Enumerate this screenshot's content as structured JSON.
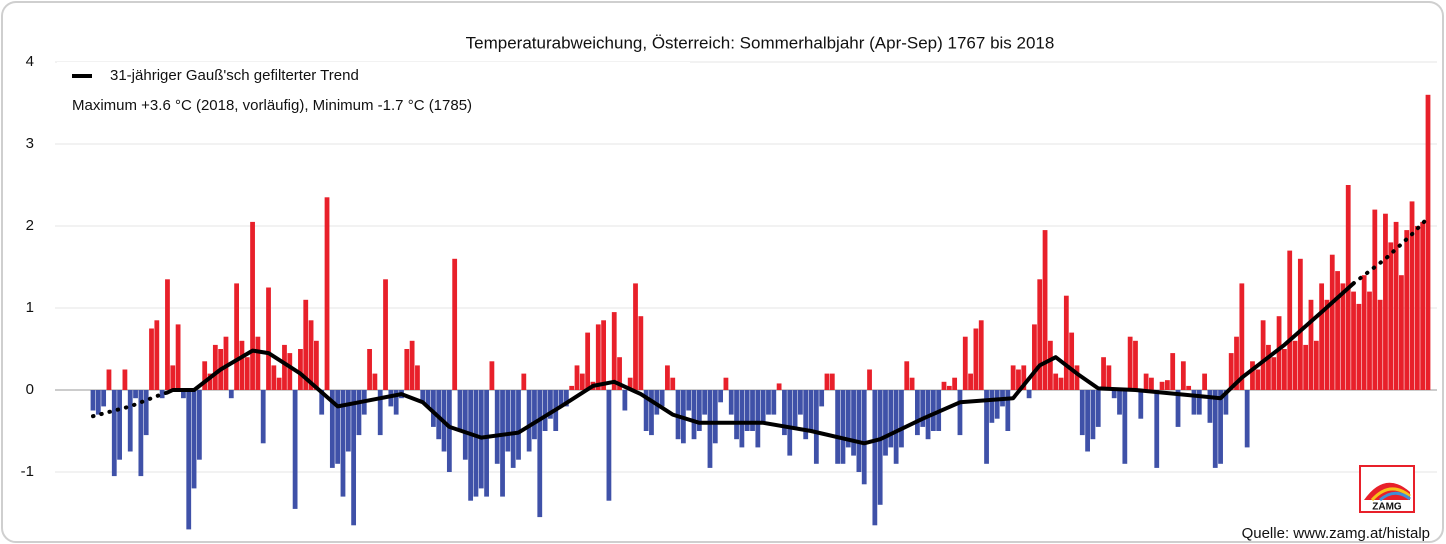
{
  "chart_data": {
    "type": "bar",
    "title": "Temperaturabweichung, Österreich: Sommerhalbjahr (Apr-Sep) 1767 bis 2018",
    "annotation": "Maximum +3.6 °C (2018, vorläufig), Minimum -1.7 °C (1785)",
    "source": "Quelle: www.zamg.at/histalp",
    "logo": "ZAMG",
    "xlim": [
      1767,
      2018
    ],
    "ylim": [
      -1.8,
      4
    ],
    "yticks": [
      -1,
      0,
      1,
      2,
      3,
      4
    ],
    "grid": true,
    "positive_color": "#e8202a",
    "negative_color": "#3f51a8",
    "values": [
      -0.25,
      -0.3,
      -0.2,
      0.25,
      -1.05,
      -0.85,
      0.25,
      -0.75,
      -0.1,
      -1.05,
      -0.55,
      0.75,
      0.85,
      -0.1,
      1.35,
      0.3,
      0.8,
      -0.1,
      -1.7,
      -1.2,
      -0.85,
      0.35,
      0.2,
      0.55,
      0.5,
      0.65,
      -0.1,
      1.3,
      0.6,
      0.4,
      2.05,
      0.65,
      -0.65,
      1.25,
      0.3,
      0.15,
      0.55,
      0.45,
      -1.45,
      0.5,
      1.1,
      0.85,
      0.6,
      -0.3,
      2.35,
      -0.95,
      -0.9,
      -1.3,
      -0.75,
      -1.65,
      -0.55,
      -0.3,
      0.5,
      0.2,
      -0.55,
      1.35,
      -0.2,
      -0.3,
      -0.1,
      0.5,
      0.6,
      0.3,
      -0.15,
      -0.2,
      -0.45,
      -0.6,
      -0.75,
      -1.0,
      1.6,
      -0.5,
      -0.85,
      -1.35,
      -1.3,
      -1.2,
      -1.3,
      0.35,
      -0.9,
      -1.3,
      -0.75,
      -0.95,
      -0.85,
      0.2,
      -0.75,
      -0.6,
      -1.55,
      -0.5,
      -0.35,
      -0.5,
      -0.2,
      -0.2,
      0.05,
      0.3,
      0.2,
      0.7,
      0.1,
      0.8,
      0.85,
      -1.35,
      0.95,
      0.4,
      -0.25,
      0.15,
      1.3,
      0.9,
      -0.5,
      -0.55,
      -0.3,
      -0.2,
      0.3,
      0.15,
      -0.6,
      -0.65,
      -0.25,
      -0.6,
      -0.5,
      -0.3,
      -0.95,
      -0.65,
      -0.15,
      0.15,
      -0.3,
      -0.6,
      -0.7,
      -0.5,
      -0.5,
      -0.7,
      -0.4,
      -0.3,
      -0.3,
      0.08,
      -0.55,
      -0.8,
      -0.45,
      -0.3,
      -0.6,
      -0.5,
      -0.9,
      -0.2,
      0.2,
      0.2,
      -0.9,
      -0.9,
      -0.7,
      -0.8,
      -1.0,
      -1.15,
      0.25,
      -1.65,
      -1.4,
      -0.8,
      -0.7,
      -0.9,
      -0.7,
      0.35,
      0.15,
      -0.55,
      -0.45,
      -0.6,
      -0.5,
      -0.5,
      0.1,
      0.05,
      0.15,
      -0.55,
      0.65,
      0.2,
      0.75,
      0.85,
      -0.9,
      -0.4,
      -0.35,
      -0.2,
      -0.5,
      0.3,
      0.25,
      0.3,
      -0.1,
      0.8,
      1.35,
      1.95,
      0.6,
      0.2,
      0.15,
      1.15,
      0.7,
      0.3,
      -0.55,
      -0.75,
      -0.6,
      -0.45,
      0.4,
      0.3,
      -0.1,
      -0.3,
      -0.9,
      0.65,
      0.6,
      -0.35,
      0.2,
      0.15,
      -0.95,
      0.1,
      0.12,
      0.45,
      -0.45,
      0.35,
      0.05,
      -0.3,
      -0.3,
      0.2,
      -0.4,
      -0.95,
      -0.9,
      -0.3,
      0.45,
      0.65,
      1.3,
      -0.7,
      0.35,
      0.25,
      0.85,
      0.55,
      0.4,
      0.9,
      0.5,
      1.7,
      0.6,
      1.6,
      0.55,
      1.1,
      0.6,
      1.3,
      1.1,
      1.65,
      1.45,
      1.3,
      2.5,
      1.2,
      1.05,
      1.4,
      1.2,
      2.2,
      1.1,
      2.15,
      1.8,
      2.05,
      1.4,
      1.95,
      2.3,
      2.0,
      2.05,
      3.6
    ],
    "trend": {
      "name": "31-jähriger Gauß'sch gefilterter Trend",
      "color": "#000000",
      "x": [
        1781,
        1782,
        1786,
        1791,
        1797,
        1800,
        1806,
        1813,
        1817,
        1825,
        1829,
        1834,
        1840,
        1847,
        1855,
        1861,
        1865,
        1870,
        1876,
        1881,
        1893,
        1902,
        1912,
        1915,
        1923,
        1930,
        1940,
        1945,
        1948,
        1952,
        1956,
        1963,
        1976,
        1979,
        1983,
        1991,
        1998,
        2004
      ],
      "values": [
        -0.03,
        0.0,
        0.0,
        0.25,
        0.48,
        0.45,
        0.2,
        -0.2,
        -0.15,
        -0.05,
        -0.15,
        -0.45,
        -0.58,
        -0.52,
        -0.2,
        0.05,
        0.1,
        -0.05,
        -0.3,
        -0.4,
        -0.4,
        -0.5,
        -0.65,
        -0.6,
        -0.35,
        -0.15,
        -0.1,
        0.3,
        0.4,
        0.2,
        0.02,
        0.0,
        -0.08,
        -0.1,
        0.15,
        0.55,
        0.95,
        1.3
      ]
    },
    "trend_ends": {
      "color": "#000000",
      "x": [
        1767,
        1774,
        1780,
        1781,
        null,
        2004,
        2010,
        2015,
        2018
      ],
      "values": [
        -0.32,
        -0.2,
        -0.05,
        -0.03,
        null,
        1.3,
        1.6,
        1.9,
        2.1
      ]
    }
  }
}
